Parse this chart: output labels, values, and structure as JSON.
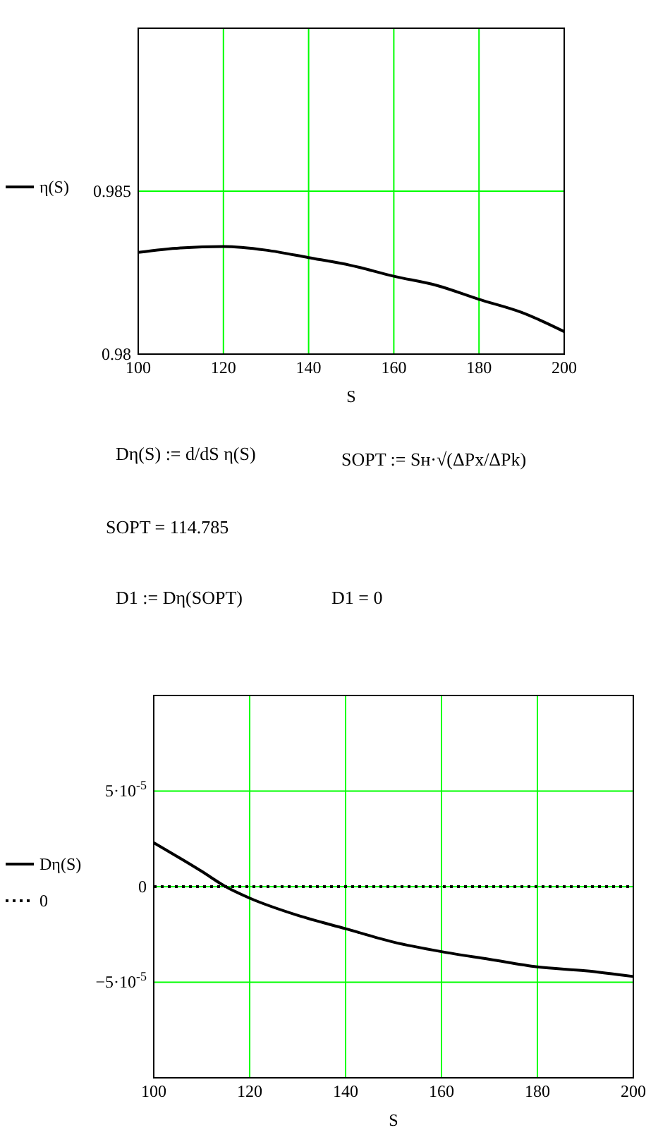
{
  "chart_data": [
    {
      "type": "line",
      "xlabel": "S",
      "x": [
        100,
        110,
        120,
        130,
        140,
        150,
        160,
        170,
        180,
        190,
        200
      ],
      "xlim": [
        100,
        200
      ],
      "xticks": [
        100,
        120,
        140,
        160,
        180,
        200
      ],
      "ylim": [
        0.98,
        0.99
      ],
      "yticks": [
        0.98,
        0.985
      ],
      "grid": true,
      "legend": "left",
      "series": [
        {
          "name": "η(S)",
          "color": "#000000",
          "values": [
            0.98312,
            0.98326,
            0.9833,
            0.98319,
            0.98296,
            0.98272,
            0.98239,
            0.98211,
            0.98168,
            0.98128,
            0.98069
          ]
        }
      ]
    },
    {
      "type": "other",
      "annotations": [
        "Dη(S) := d/dS η(S)",
        "SOPT := Sн·√(ΔPx/ΔPk)",
        "SOPT = 114.785",
        "D1 := Dη(SOPT)",
        "D1 = 0"
      ]
    },
    {
      "type": "line",
      "xlabel": "S",
      "x": [
        100,
        110,
        115,
        120,
        130,
        140,
        150,
        160,
        170,
        180,
        190,
        200
      ],
      "xlim": [
        100,
        200
      ],
      "xticks": [
        100,
        120,
        140,
        160,
        180,
        200
      ],
      "ylim": [
        -0.0001,
        0.0001
      ],
      "yticks": [
        {
          "value": -5e-05,
          "label": "−5·10$^{-5}$"
        },
        0,
        {
          "value": 5e-05,
          "label": "5·10$^{-5}$"
        }
      ],
      "grid": true,
      "legend": "left",
      "series": [
        {
          "name": "Dη(S)",
          "color": "#000000",
          "line_style": "solid",
          "values": [
            2.3e-05,
            8e-06,
            0,
            -6e-06,
            -1.5e-05,
            -2.2e-05,
            -2.9e-05,
            -3.4e-05,
            -3.8e-05,
            -4.2e-05,
            -4.4e-05,
            -4.7e-05
          ]
        },
        {
          "name": "0",
          "color": "#000000",
          "line_style": "dotted",
          "x": [
            100,
            200
          ],
          "values": [
            0,
            0
          ]
        }
      ]
    }
  ]
}
